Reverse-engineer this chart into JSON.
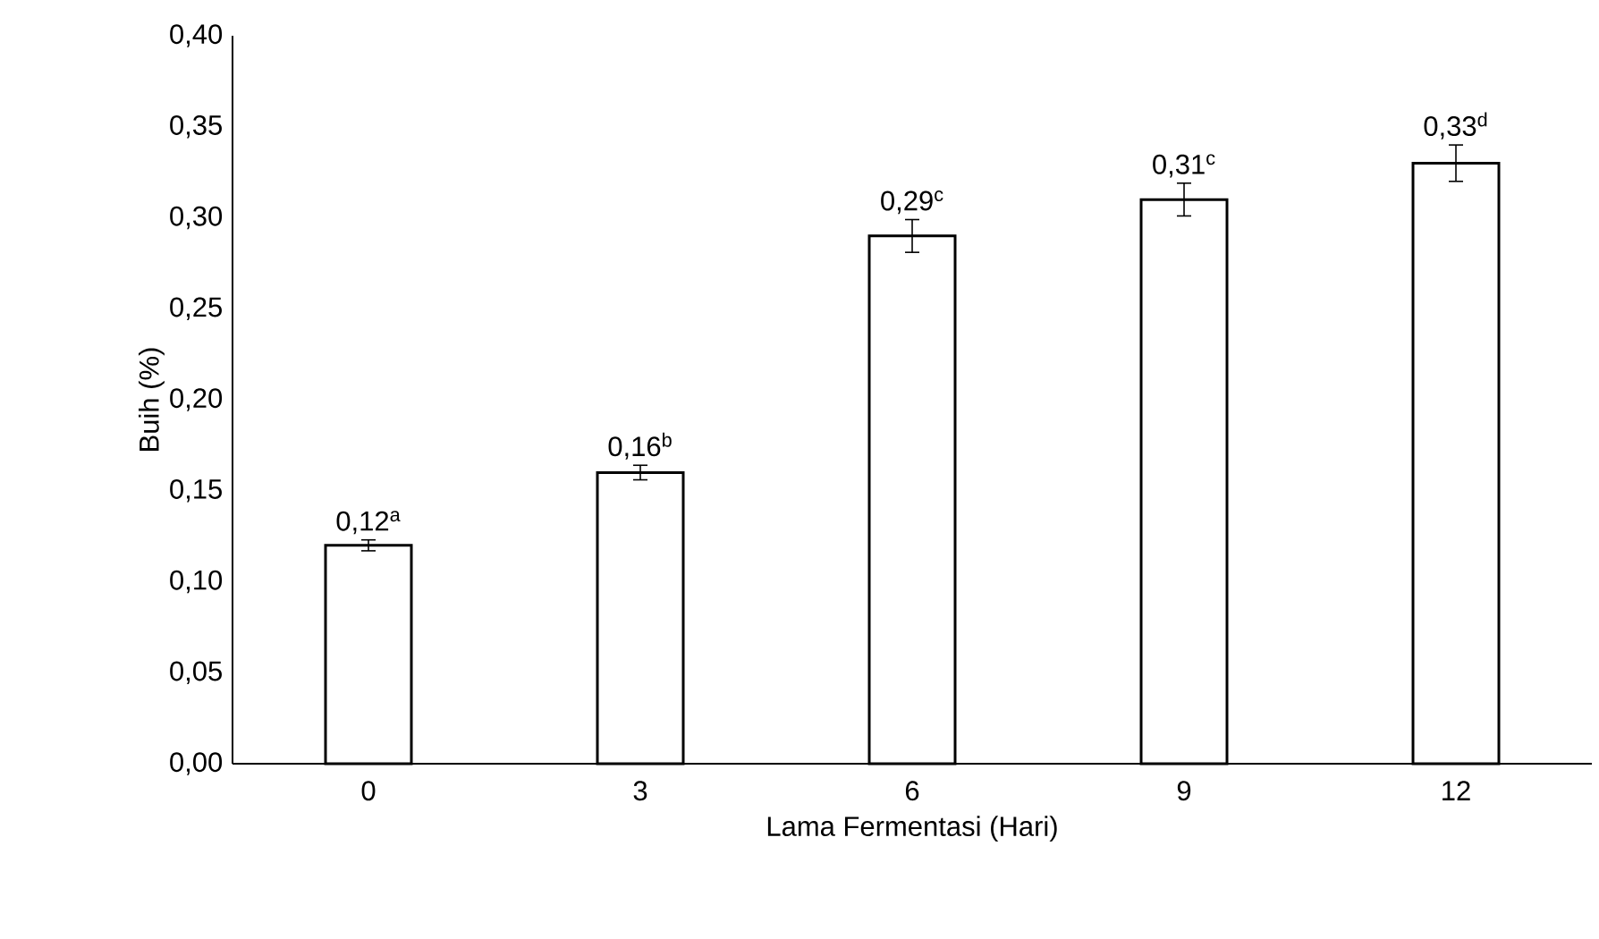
{
  "chart_data": {
    "type": "bar",
    "xlabel": "Lama Fermentasi (Hari)",
    "ylabel": "Buih (%)",
    "categories": [
      "0",
      "3",
      "6",
      "9",
      "12"
    ],
    "values": [
      0.12,
      0.16,
      0.29,
      0.31,
      0.33
    ],
    "errors": [
      0.003,
      0.004,
      0.009,
      0.009,
      0.01
    ],
    "value_labels": [
      "0,12$^{a}$",
      "0,16$^{b}$",
      "0,29$^{c}$",
      "0,31$^{c}$",
      "0,33$^{d}$"
    ],
    "color": "#ffffff",
    "ylim": [
      0,
      0.4
    ],
    "yticks": [
      {
        "value": 0,
        "label": "0,00"
      },
      {
        "value": 0.05,
        "label": "0,05"
      },
      {
        "value": 0.1,
        "label": "0,10"
      },
      {
        "value": 0.15,
        "label": "0,15"
      },
      {
        "value": 0.2,
        "label": "0,20"
      },
      {
        "value": 0.25,
        "label": "0,25"
      },
      {
        "value": 0.3,
        "label": "0,30"
      },
      {
        "value": 0.35,
        "label": "0,35"
      },
      {
        "value": 0.4,
        "label": "0,40"
      }
    ]
  }
}
